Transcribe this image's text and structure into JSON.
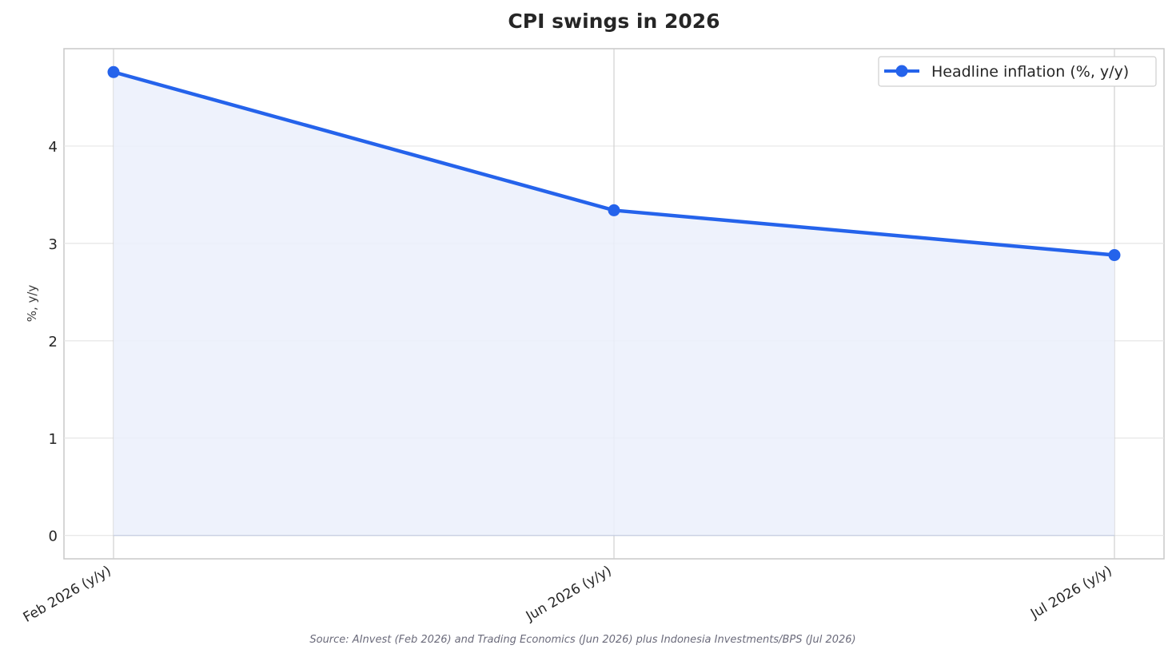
{
  "chart_data": {
    "type": "area",
    "title": "CPI swings in 2026",
    "xlabel": "",
    "ylabel": "%, y/y",
    "categories": [
      "Feb 2026 (y/y)",
      "Jun 2026 (y/y)",
      "Jul 2026 (y/y)"
    ],
    "series": [
      {
        "name": "Headline inflation (%, y/y)",
        "values": [
          4.76,
          3.34,
          2.88
        ]
      }
    ],
    "ylim": [
      -0.24,
      5.0
    ],
    "yticks": [
      0,
      1,
      2,
      3,
      4
    ],
    "grid": true,
    "legend_position": "top-right",
    "source": "Source: AInvest (Feb 2026) and Trading Economics (Jun 2026) plus Indonesia Investments/BPS (Jul 2026)",
    "colors": {
      "line": "#2563eb",
      "fill": "#ebf0fb",
      "grid": "#e6e6e6",
      "axis": "#c8c8c8"
    }
  }
}
